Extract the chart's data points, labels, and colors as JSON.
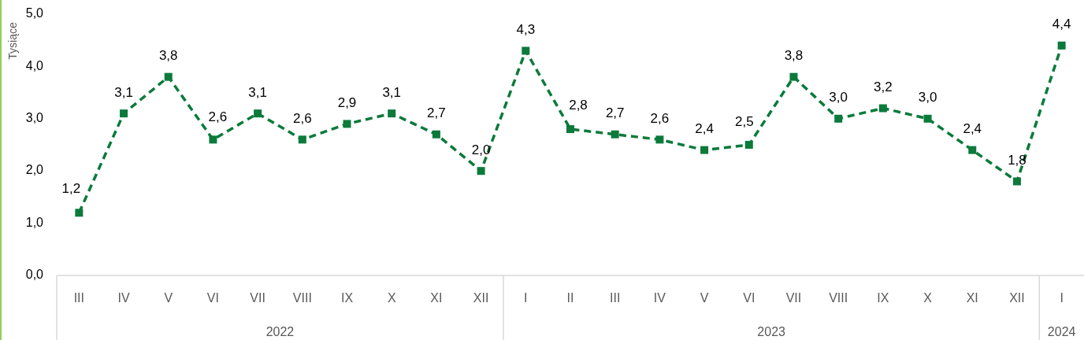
{
  "chart_data": {
    "type": "line",
    "ylabel": "Tysiące",
    "categories": [
      "III",
      "IV",
      "V",
      "VI",
      "VII",
      "VIII",
      "IX",
      "X",
      "XI",
      "XII",
      "I",
      "II",
      "III",
      "IV",
      "V",
      "VI",
      "VII",
      "VIII",
      "IX",
      "X",
      "XI",
      "XII",
      "I"
    ],
    "series": [
      {
        "color": "#0b7a3b",
        "values": [
          1.2,
          3.1,
          3.8,
          2.6,
          3.1,
          2.6,
          2.9,
          3.1,
          2.7,
          2.0,
          4.3,
          2.8,
          2.7,
          2.6,
          2.4,
          2.5,
          3.8,
          3.0,
          3.2,
          3.0,
          2.4,
          1.8,
          4.4
        ],
        "value_labels": [
          "1,2",
          "3,1",
          "3,8",
          "2,6",
          "3,1",
          "2,6",
          "2,9",
          "3,1",
          "2,7",
          "2,0",
          "4,3",
          "2,8",
          "2,7",
          "2,6",
          "2,4",
          "2,5",
          "3,8",
          "3,0",
          "3,2",
          "3,0",
          "2,4",
          "1,8",
          "4,4"
        ]
      }
    ],
    "ylim": [
      0,
      5
    ],
    "yticks": [
      {
        "value": 0,
        "label": "0,0"
      },
      {
        "value": 1,
        "label": "1,0"
      },
      {
        "value": 2,
        "label": "2,0"
      },
      {
        "value": 3,
        "label": "3,0"
      },
      {
        "value": 4,
        "label": "4,0"
      },
      {
        "value": 5,
        "label": "5,0"
      }
    ],
    "marker": "square",
    "line_style": "dashed",
    "annotations": [
      "2022",
      "2023",
      "2024"
    ]
  }
}
